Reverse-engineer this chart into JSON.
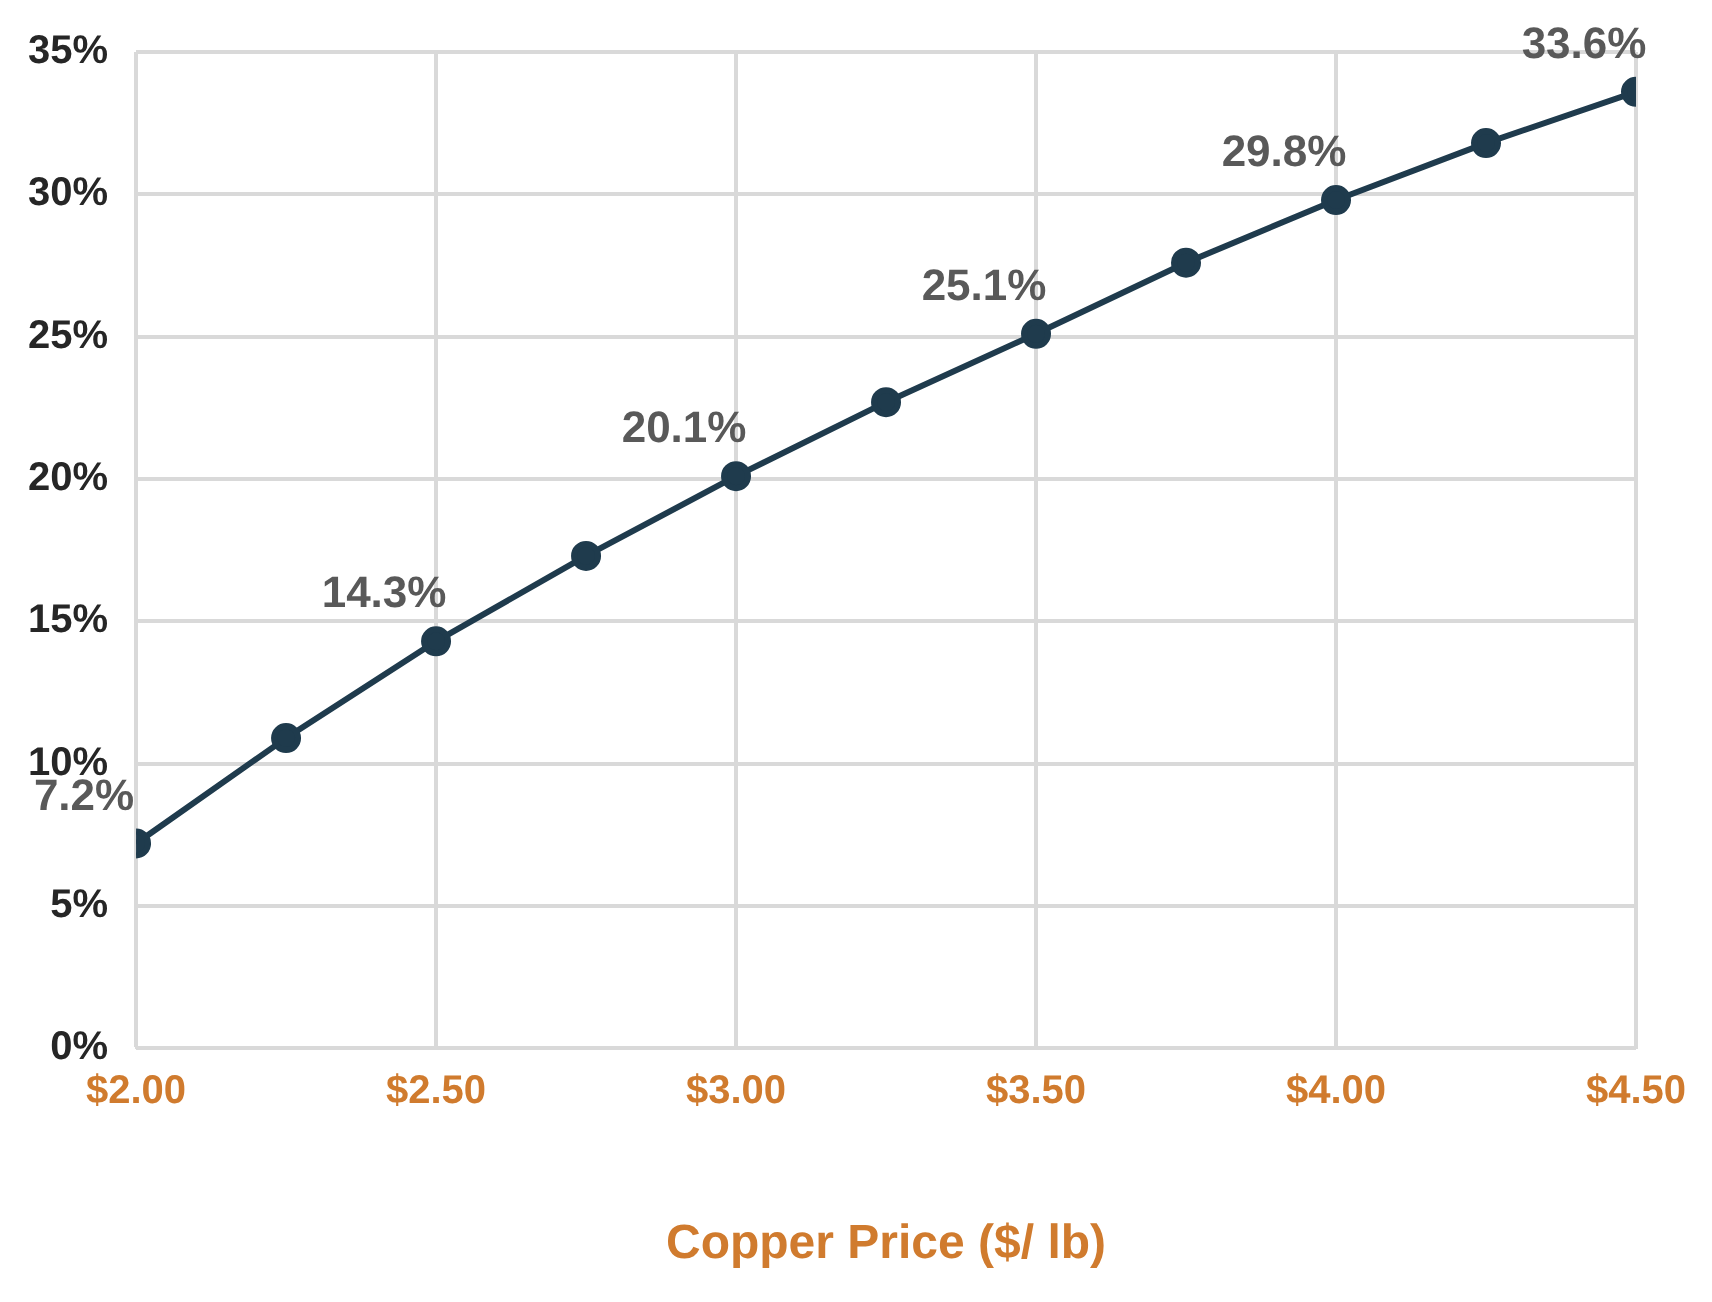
{
  "chart_data": {
    "type": "line",
    "xlabel": "Copper Price ($/ lb)",
    "x": [
      2.0,
      2.25,
      2.5,
      2.75,
      3.0,
      3.25,
      3.5,
      3.75,
      4.0,
      4.25,
      4.5
    ],
    "series": [
      {
        "color": "#1f3b4d",
        "values": [
          7.2,
          10.9,
          14.3,
          17.3,
          20.1,
          22.7,
          25.1,
          27.6,
          29.8,
          31.8,
          33.6
        ],
        "value_labels": [
          "7.2%",
          null,
          "14.3%",
          null,
          "20.1%",
          null,
          "25.1%",
          null,
          "29.8%",
          null,
          "33.6%"
        ]
      }
    ],
    "xlim": [
      2.0,
      4.5
    ],
    "xticks": [
      {
        "value": 2.0,
        "label": "$2.00"
      },
      {
        "value": 2.5,
        "label": "$2.50"
      },
      {
        "value": 3.0,
        "label": "$3.00"
      },
      {
        "value": 3.5,
        "label": "$3.50"
      },
      {
        "value": 4.0,
        "label": "$4.00"
      },
      {
        "value": 4.5,
        "label": "$4.50"
      }
    ],
    "ylim": [
      0,
      35
    ],
    "yticks": [
      {
        "value": 0,
        "label": "0%"
      },
      {
        "value": 5,
        "label": "5%"
      },
      {
        "value": 10,
        "label": "10%"
      },
      {
        "value": 15,
        "label": "15%"
      },
      {
        "value": 20,
        "label": "20%"
      },
      {
        "value": 25,
        "label": "25%"
      },
      {
        "value": 30,
        "label": "30%"
      },
      {
        "value": 35,
        "label": "35%"
      }
    ],
    "grid": true,
    "legend": false,
    "marker": "circle",
    "line_style": "solid"
  }
}
